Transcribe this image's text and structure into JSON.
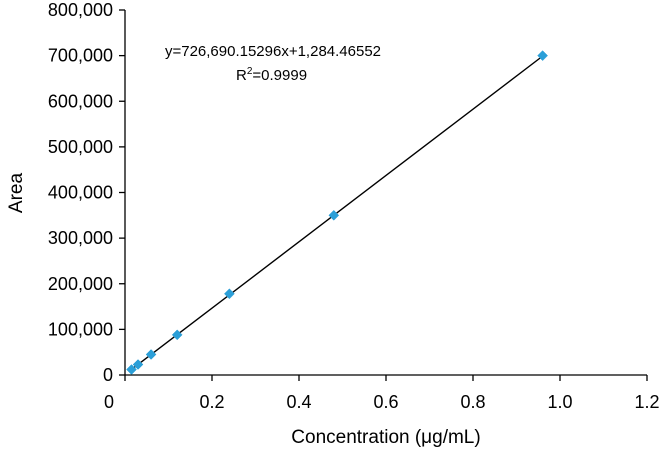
{
  "chart_data": {
    "type": "scatter",
    "title": "",
    "xlabel": "Concentration (μg/mL)",
    "ylabel": "Area",
    "xlim": [
      0,
      1.2
    ],
    "ylim": [
      0,
      800000
    ],
    "x_ticks": [
      "0",
      "0.2",
      "0.4",
      "0.6",
      "0.8",
      "1.0",
      "1.2"
    ],
    "y_ticks": [
      "0",
      "100,000",
      "200,000",
      "300,000",
      "400,000",
      "500,000",
      "600,000",
      "700,000",
      "800,000"
    ],
    "grid": false,
    "legend": "none",
    "series": [
      {
        "marker": "diamond",
        "color": "#2b9fd8",
        "points": [
          {
            "x": 0.015,
            "y": 12000
          },
          {
            "x": 0.03,
            "y": 23000
          },
          {
            "x": 0.06,
            "y": 45000
          },
          {
            "x": 0.12,
            "y": 88000
          },
          {
            "x": 0.24,
            "y": 178000
          },
          {
            "x": 0.48,
            "y": 350000
          },
          {
            "x": 0.96,
            "y": 700000
          }
        ]
      }
    ],
    "trendline": {
      "type": "linear",
      "slope": 726690.15296,
      "intercept": 1284.46552,
      "x_range": [
        0.015,
        0.96
      ],
      "color": "#000000"
    },
    "annotations": {
      "equation": "y=726,690.15296x+1,284.46552",
      "r2_prefix": "R",
      "r2_sup": "2",
      "r2_value": "=0.9999"
    }
  }
}
